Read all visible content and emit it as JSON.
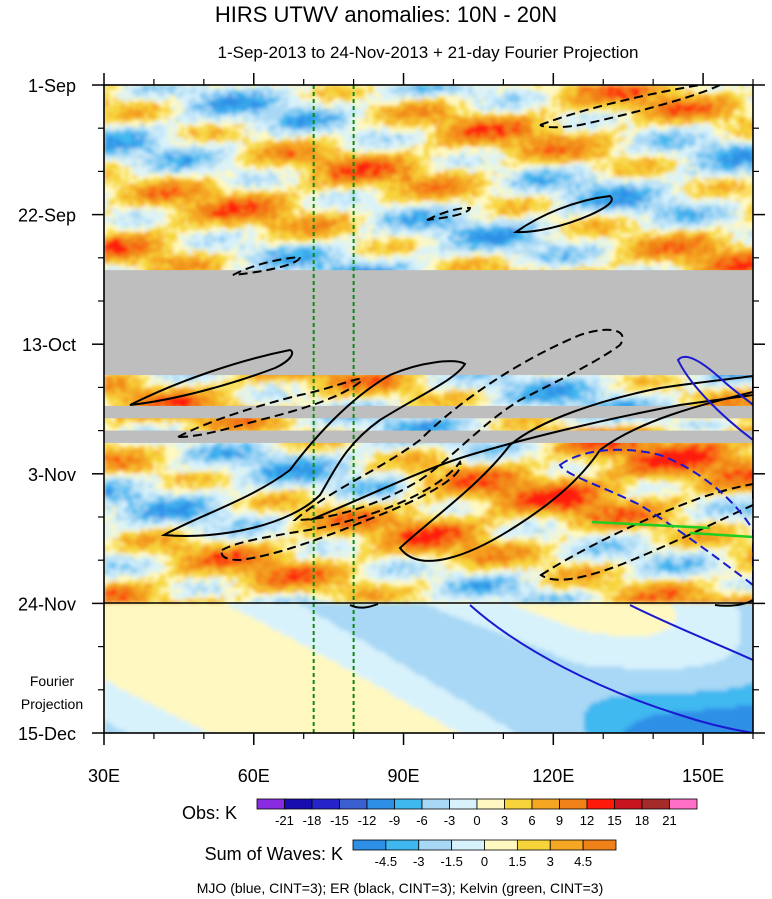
{
  "chart_data": {
    "type": "heatmap",
    "title": "HIRS UTWV anomalies: 10N - 20N",
    "subtitle": "1-Sep-2013 to 24-Nov-2013 + 21-day Fourier Projection",
    "x_axis": {
      "range": [
        30,
        160
      ],
      "ticks": [
        {
          "value": 30,
          "label": "30E"
        },
        {
          "value": 60,
          "label": "60E"
        },
        {
          "value": 90,
          "label": "90E"
        },
        {
          "value": 120,
          "label": "120E"
        },
        {
          "value": 150,
          "label": "150E"
        }
      ]
    },
    "y_axis": {
      "range_days": [
        0,
        105
      ],
      "ticks": [
        {
          "day": 0,
          "label": "1-Sep"
        },
        {
          "day": 21,
          "label": "22-Sep"
        },
        {
          "day": 42,
          "label": "13-Oct"
        },
        {
          "day": 63,
          "label": "3-Nov"
        },
        {
          "day": 84,
          "label": "24-Nov"
        },
        {
          "day": 105,
          "label": "15-Dec"
        }
      ]
    },
    "projection_start_label": "24-Nov",
    "projection_label": [
      "Fourier",
      "Projection"
    ],
    "missing_data_bands_days": [
      [
        30,
        47
      ],
      [
        52,
        54
      ],
      [
        56,
        58
      ]
    ],
    "reference_longitudes": [
      72,
      80
    ],
    "obs_colorbar": {
      "label": "Obs: K",
      "levels": [
        "-21",
        "-18",
        "-15",
        "-12",
        "-9",
        "-6",
        "-3",
        "0",
        "3",
        "6",
        "9",
        "12",
        "15",
        "18",
        "21"
      ],
      "colors": [
        "#8a2be2",
        "#1a0db0",
        "#2424c8",
        "#3a5fd0",
        "#2d8fe6",
        "#3fb8f0",
        "#a8d8f5",
        "#d8f2fc",
        "#fff8c0",
        "#f7d43a",
        "#f5a623",
        "#f08018",
        "#ff1a0a",
        "#c8141e",
        "#a52a2a",
        "#ff6ec7"
      ]
    },
    "waves_colorbar": {
      "label": "Sum of Waves: K",
      "levels": [
        "-4.5",
        "-3",
        "-1.5",
        "0",
        "1.5",
        "3",
        "4.5"
      ],
      "colors": [
        "#2d8fe6",
        "#3fb8f0",
        "#a8d8f5",
        "#d8f2fc",
        "#fff8c0",
        "#f7d43a",
        "#f5a623",
        "#f08018"
      ]
    },
    "contour_legend": "MJO (blue, CINT=3); ER (black, CINT=3); Kelvin (green, CINT=3)",
    "filtered_wave_colors": {
      "MJO": "#1a1ad0",
      "ER": "#000000",
      "Kelvin": "#22cc22"
    }
  }
}
